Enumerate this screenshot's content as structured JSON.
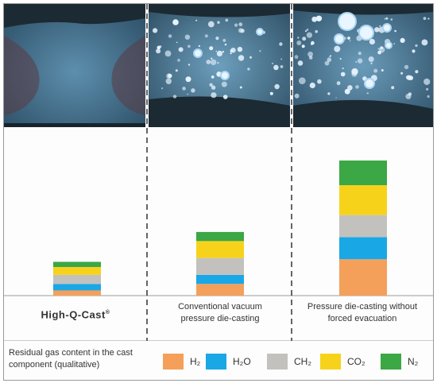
{
  "chart_data": {
    "type": "stacked-bar",
    "categories": [
      "High-Q-Cast®",
      "Conventional vacuum pressure die-casting",
      "Pressure die-casting without forced evacuation"
    ],
    "category_labels": [
      {
        "line1": "High-Q-Cast",
        "mark": "®",
        "line2": ""
      },
      {
        "line1": "Conventional vacuum",
        "line2": "pressure die-casting"
      },
      {
        "line1": "Pressure die-casting without",
        "line2": "forced evacuation"
      }
    ],
    "series": [
      {
        "name": "H₂",
        "color": "#f4a05a",
        "values": [
          4,
          9,
          28
        ]
      },
      {
        "name": "H₂O",
        "color": "#1aa7e6",
        "values": [
          5,
          7,
          17
        ]
      },
      {
        "name": "CH₂",
        "color": "#c3c1bd",
        "values": [
          7,
          13,
          17
        ]
      },
      {
        "name": "CO₂",
        "color": "#f7d21b",
        "values": [
          6,
          13,
          23
        ]
      },
      {
        "name": "N₂",
        "color": "#3ba745",
        "values": [
          4,
          7,
          19
        ]
      }
    ],
    "ylim": [
      0,
      110
    ]
  },
  "legend": {
    "title": "Residual gas content in the cast component (qualitative)",
    "items": [
      {
        "label": "H₂",
        "icon": "h2-swatch",
        "color": "#f4a05a"
      },
      {
        "label": "H₂O",
        "icon": "h2o-swatch",
        "color": "#1aa7e6"
      },
      {
        "label": "CH₂",
        "icon": "ch2-swatch",
        "color": "#c3c1bd"
      },
      {
        "label": "CO₂",
        "icon": "co2-swatch",
        "color": "#f7d21b"
      },
      {
        "label": "N₂",
        "icon": "n2-swatch",
        "color": "#3ba745"
      }
    ]
  },
  "micrographs": [
    {
      "icon": "porosity-micrograph-low"
    },
    {
      "icon": "porosity-micrograph-medium"
    },
    {
      "icon": "porosity-micrograph-high"
    }
  ]
}
